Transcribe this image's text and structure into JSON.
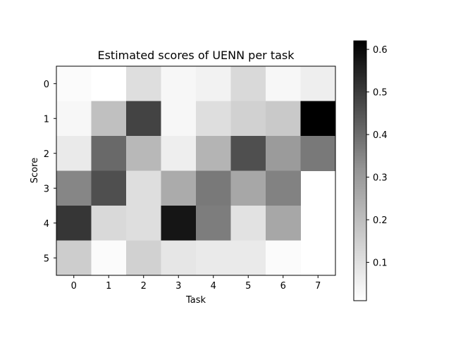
{
  "chart_data": {
    "type": "heatmap",
    "title": "Estimated scores of UENN per task",
    "xlabel": "Task",
    "ylabel": "Score",
    "x_categories": [
      "0",
      "1",
      "2",
      "3",
      "4",
      "5",
      "6",
      "7"
    ],
    "y_categories": [
      "0",
      "1",
      "2",
      "3",
      "4",
      "5"
    ],
    "values": [
      [
        0.02,
        0.01,
        0.09,
        0.03,
        0.04,
        0.1,
        0.03,
        0.05
      ],
      [
        0.03,
        0.16,
        0.46,
        0.03,
        0.09,
        0.12,
        0.14,
        0.62
      ],
      [
        0.06,
        0.37,
        0.18,
        0.05,
        0.19,
        0.43,
        0.25,
        0.33
      ],
      [
        0.3,
        0.43,
        0.09,
        0.21,
        0.33,
        0.22,
        0.31,
        null
      ],
      [
        0.49,
        0.1,
        0.09,
        0.57,
        0.32,
        0.08,
        0.22,
        null
      ],
      [
        0.13,
        0.02,
        0.12,
        0.07,
        0.06,
        0.06,
        0.02,
        null
      ]
    ],
    "colormap": "Greys",
    "colorbar": {
      "range": [
        0.01,
        0.62
      ],
      "ticks": [
        0.1,
        0.2,
        0.3,
        0.4,
        0.5,
        0.6
      ],
      "tick_labels": [
        "0.1",
        "0.2",
        "0.3",
        "0.4",
        "0.5",
        "0.6"
      ]
    },
    "grid": false
  }
}
